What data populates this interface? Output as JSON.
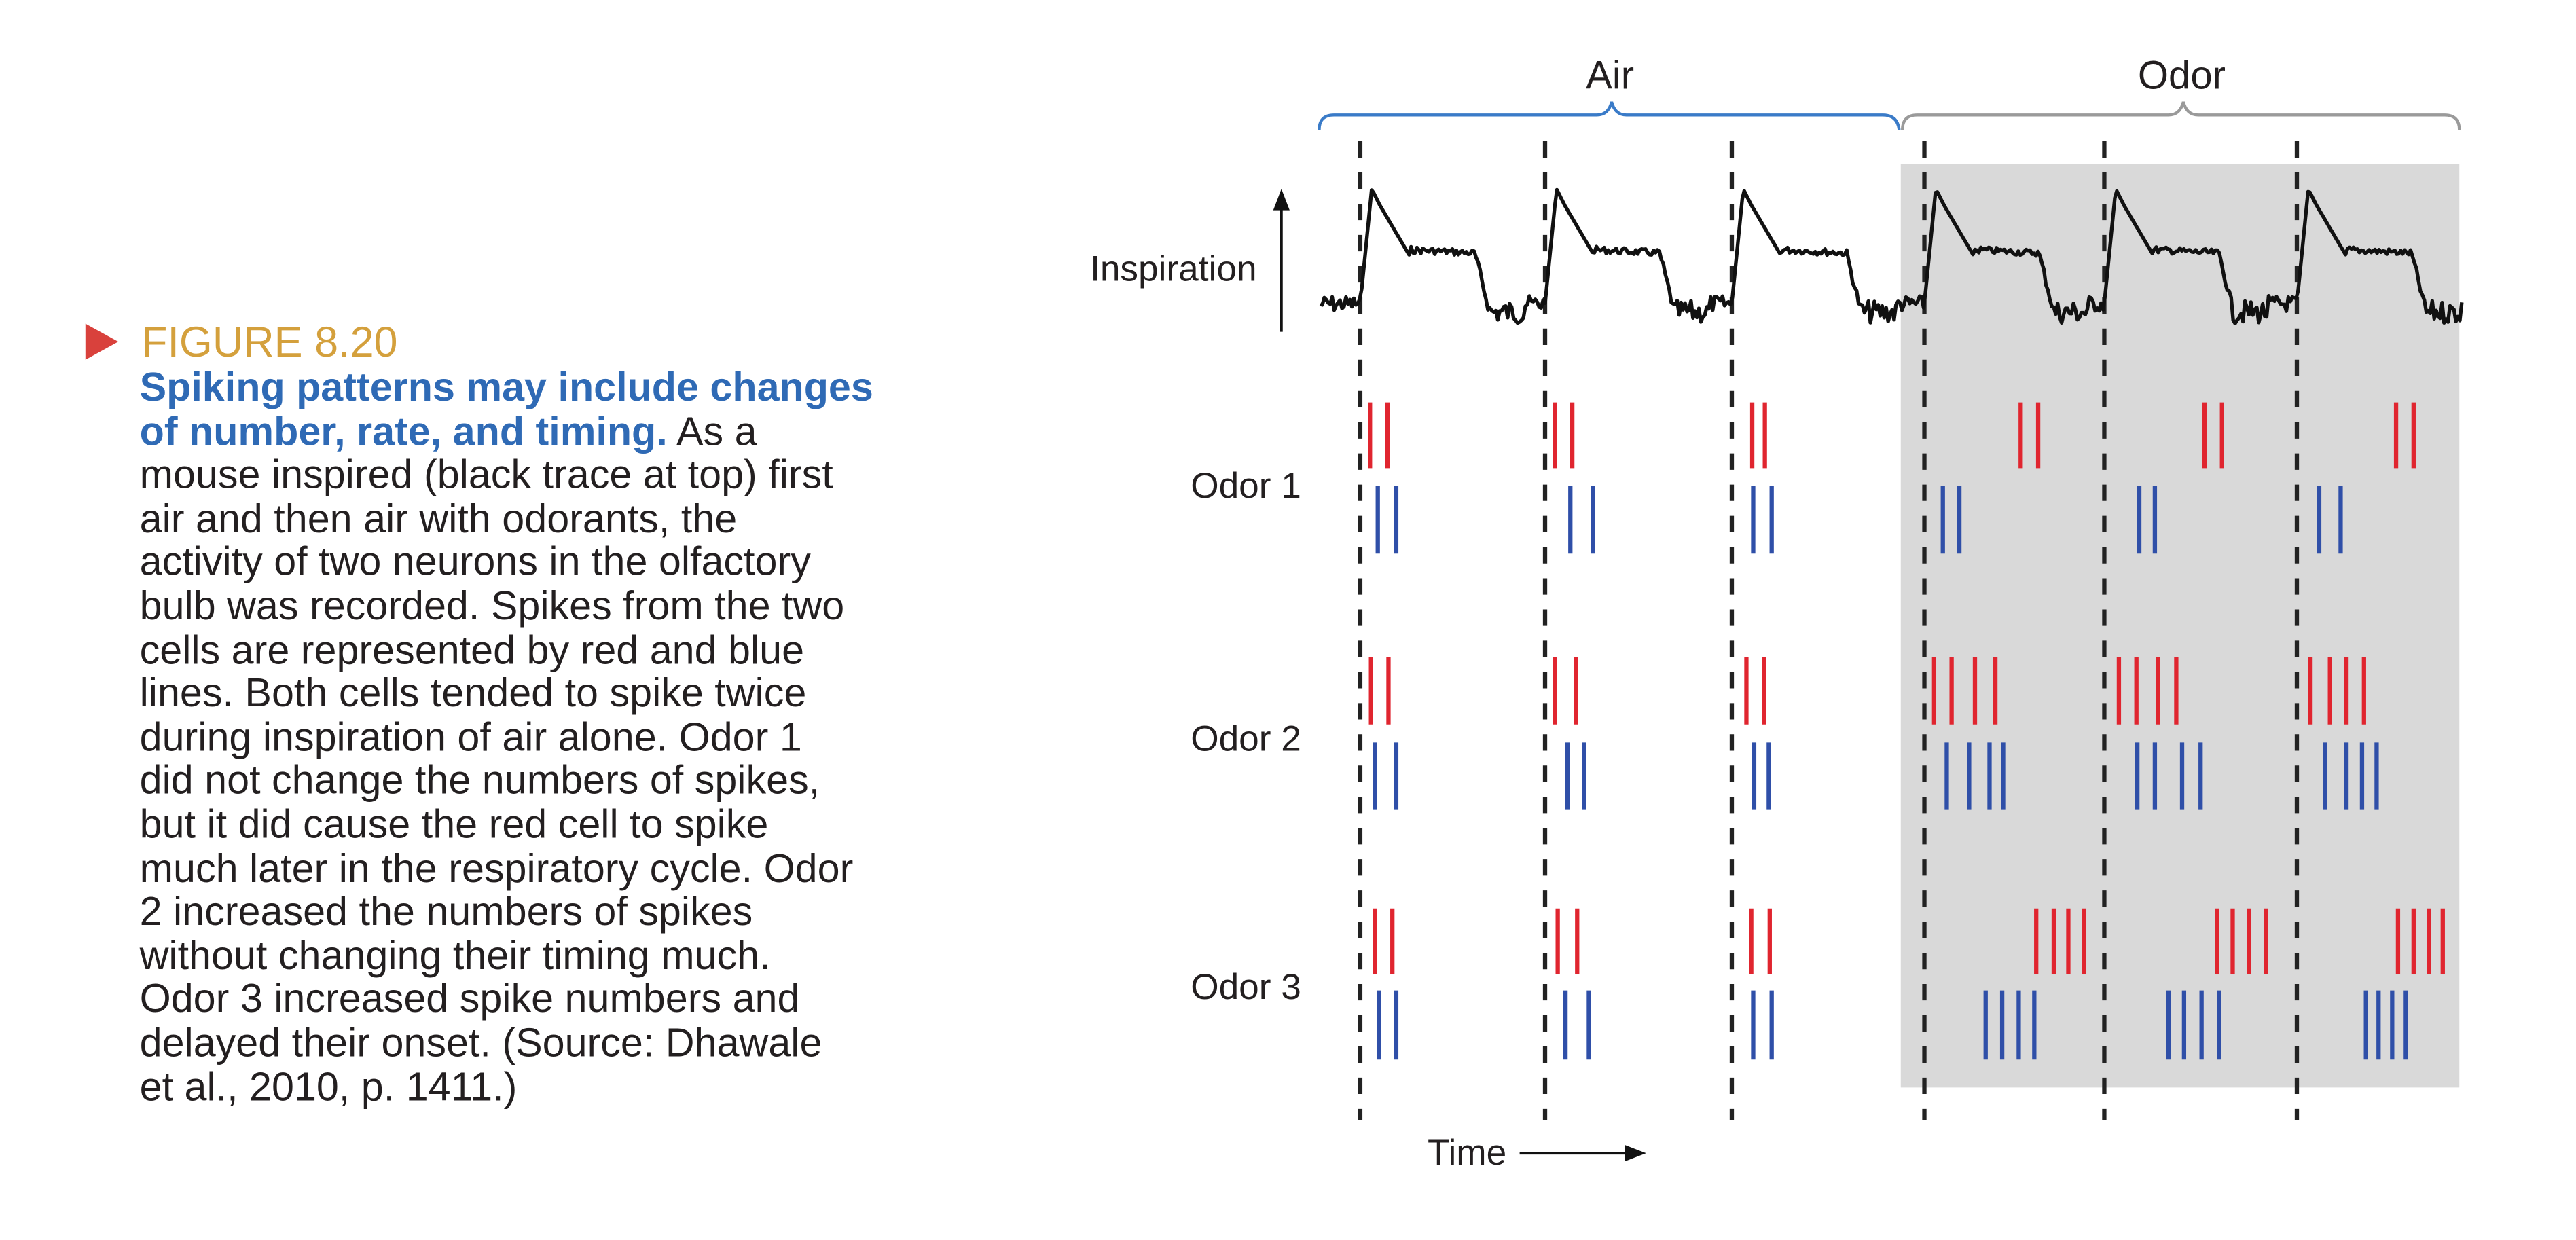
{
  "caption": {
    "figure_label": "FIGURE 8.20",
    "title_line_1": "Spiking patterns may include changes",
    "title_line_2": "of number, rate, and timing.",
    "title_line_2_tail": " As a",
    "body_lines": [
      "mouse inspired (black trace at top) first",
      "air and then air with odorants, the",
      "activity of two neurons in the olfactory",
      "bulb was recorded. Spikes from the two",
      "cells are represented by red and blue",
      "lines. Both cells tended to spike twice",
      "during inspiration of air alone. Odor 1",
      "did not change the numbers of spikes,",
      "but it did cause the red cell to spike",
      "much later in the respiratory cycle. Odor",
      "2 increased the numbers of spikes",
      "without changing their timing much.",
      "Odor 3 increased spike numbers and",
      "delayed their onset. (Source: Dhawale",
      "et al., 2010, p. 1411.)"
    ]
  },
  "colors": {
    "red_cell": "#e0252f",
    "blue_cell": "#2f4fa8",
    "air_bracket": "#3a7bc8",
    "odor_bracket": "#9a9a9a",
    "odor_shading": "#d9d9d9",
    "figure_label": "#d4a03c",
    "title": "#2f6ab5"
  },
  "chart_data": {
    "type": "raster",
    "title": "",
    "xlabel": "Time",
    "ylabel": "Inspiration",
    "time_units": "a.u.",
    "epochs": [
      {
        "label": "Air",
        "start": -41,
        "end": 556
      },
      {
        "label": "Odor",
        "start": 556,
        "end": 1133
      }
    ],
    "cycle_onsets": [
      0,
      190,
      382,
      580,
      765,
      963
    ],
    "rows": [
      {
        "label": "Odor 1",
        "red": [
          [
            10,
            28
          ],
          [
            10,
            28
          ],
          [
            21,
            34
          ],
          [
            99,
            117
          ],
          [
            103,
            121
          ],
          [
            102,
            120
          ]
        ],
        "blue": [
          [
            18,
            37
          ],
          [
            26,
            49
          ],
          [
            22,
            41
          ],
          [
            19,
            36
          ],
          [
            36,
            52
          ],
          [
            23,
            45
          ]
        ]
      },
      {
        "label": "Odor 2",
        "red": [
          [
            11,
            29
          ],
          [
            10,
            32
          ],
          [
            15,
            33
          ],
          [
            10,
            28,
            52,
            73
          ],
          [
            15,
            33,
            55,
            74
          ],
          [
            14,
            34,
            51,
            69
          ]
        ],
        "blue": [
          [
            15,
            37
          ],
          [
            23,
            40
          ],
          [
            23,
            38
          ],
          [
            23,
            46,
            67,
            81
          ],
          [
            34,
            52,
            80,
            99
          ],
          [
            29,
            51,
            67,
            82
          ]
        ]
      },
      {
        "label": "Odor 3",
        "red": [
          [
            15,
            33
          ],
          [
            13,
            33
          ],
          [
            20,
            39
          ],
          [
            115,
            133,
            148,
            164
          ],
          [
            116,
            132,
            149,
            166
          ],
          [
            104,
            120,
            136,
            150
          ]
        ],
        "blue": [
          [
            19,
            37
          ],
          [
            21,
            45
          ],
          [
            22,
            41
          ],
          [
            63,
            80,
            97,
            113
          ],
          [
            66,
            82,
            100,
            118
          ],
          [
            71,
            84,
            98,
            112
          ]
        ]
      }
    ]
  }
}
